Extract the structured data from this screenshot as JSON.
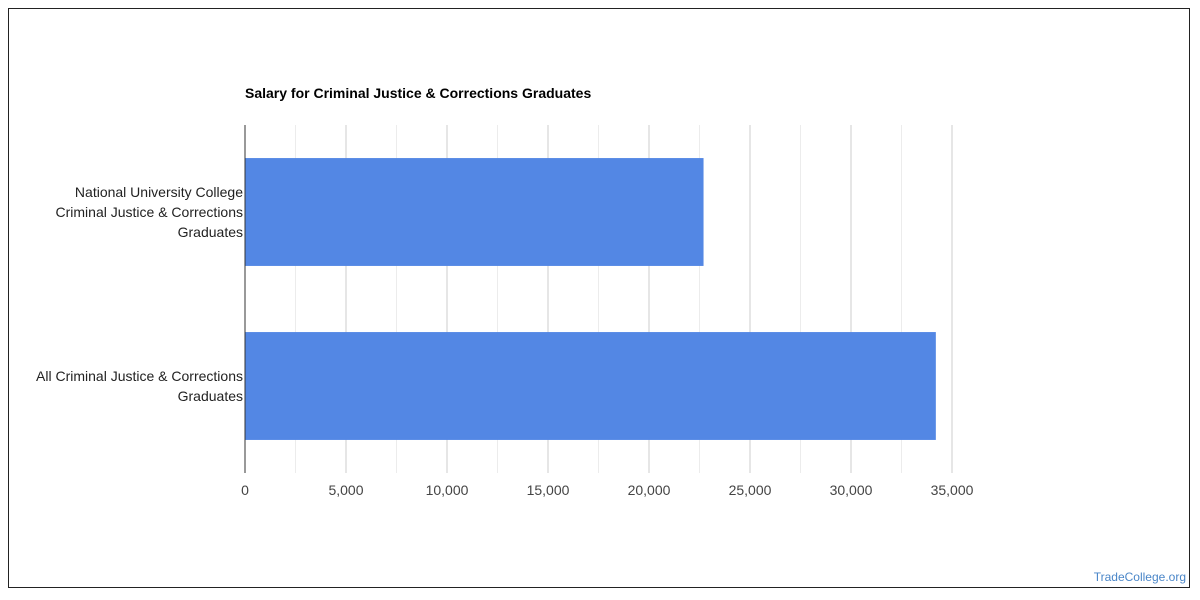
{
  "chart_data": {
    "type": "bar",
    "orientation": "horizontal",
    "title": "Salary for Criminal Justice & Corrections Graduates",
    "xlabel": "",
    "ylabel": "",
    "categories": [
      [
        "National University College",
        "Criminal Justice & Corrections",
        "Graduates"
      ],
      [
        "All Criminal Justice & Corrections",
        "Graduates"
      ]
    ],
    "values": [
      22700,
      34200
    ],
    "xlim": [
      0,
      35000
    ],
    "xticks": [
      0,
      5000,
      10000,
      15000,
      20000,
      25000,
      30000,
      35000
    ],
    "xtick_labels": [
      "0",
      "5,000",
      "10,000",
      "15,000",
      "20,000",
      "25,000",
      "30,000",
      "35,000"
    ],
    "bar_color": "#5387e4",
    "grid": true,
    "legend": "none"
  },
  "watermark": "TradeCollege.org"
}
